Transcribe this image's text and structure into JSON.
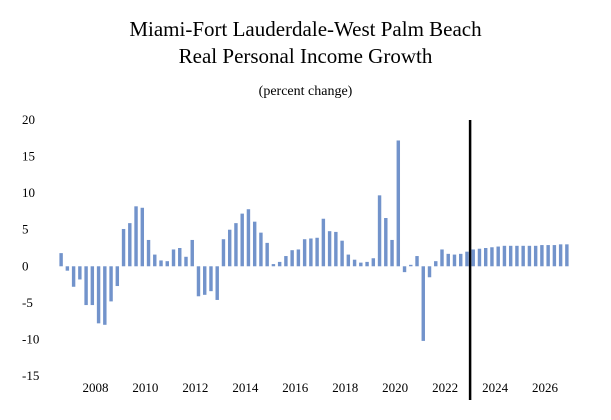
{
  "chart_data": {
    "type": "bar",
    "title_line1": "Miami-Fort Lauderdale-West Palm Beach",
    "title_line2": "Real Personal Income Growth",
    "subtitle": "(percent change)",
    "xlabel": "",
    "ylabel": "",
    "ylim": [
      -15,
      20
    ],
    "yticks": [
      20,
      15,
      10,
      5,
      0,
      -5,
      -10,
      -15
    ],
    "xticks": [
      "2008",
      "2010",
      "2012",
      "2014",
      "2016",
      "2018",
      "2020",
      "2022",
      "2024",
      "2026"
    ],
    "x_start": "2007Q1",
    "frequency": "quarterly",
    "forecast_start": "2023Q3",
    "bar_color": "#7293cb",
    "grid": false,
    "values": [
      1.8,
      -0.6,
      -2.8,
      -1.8,
      -5.3,
      -5.3,
      -7.8,
      -8.0,
      -4.8,
      -2.7,
      5.1,
      5.9,
      8.2,
      8.0,
      3.6,
      1.6,
      0.8,
      0.7,
      2.3,
      2.5,
      1.3,
      3.6,
      -4.1,
      -3.9,
      -3.4,
      -4.6,
      3.7,
      5.0,
      5.9,
      7.2,
      7.8,
      6.1,
      4.6,
      3.2,
      0.3,
      0.6,
      1.4,
      2.2,
      2.3,
      3.7,
      3.8,
      3.9,
      6.5,
      4.8,
      4.7,
      3.5,
      1.6,
      0.9,
      0.5,
      0.6,
      1.1,
      9.7,
      6.6,
      3.6,
      17.2,
      -0.8,
      0.2,
      1.4,
      -10.2,
      -1.5,
      0.7,
      2.3,
      1.7,
      1.6,
      1.7,
      2.0,
      2.3,
      2.4,
      2.5,
      2.6,
      2.7,
      2.8,
      2.8,
      2.8,
      2.8,
      2.8,
      2.8,
      2.9,
      2.9,
      2.9,
      3.0,
      3.0
    ]
  }
}
